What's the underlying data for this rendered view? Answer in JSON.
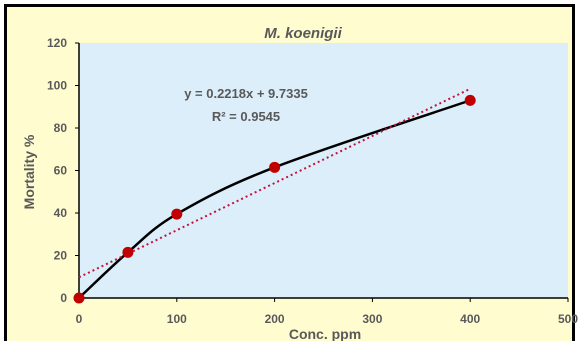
{
  "chart_data": {
    "type": "scatter",
    "title": "M. koenigii",
    "xlabel": "Conc. ppm",
    "ylabel": "Mortality %",
    "xlim": [
      0,
      500
    ],
    "ylim": [
      0,
      120
    ],
    "xticks": [
      0,
      100,
      200,
      300,
      400,
      500
    ],
    "yticks": [
      0,
      20,
      40,
      60,
      80,
      100,
      120
    ],
    "grid": false,
    "legend": "none",
    "series": [
      {
        "x": [
          0,
          50,
          100,
          200,
          400
        ],
        "y": [
          0,
          21.5,
          39.5,
          61.5,
          93
        ]
      }
    ],
    "trendline": {
      "type": "linear",
      "slope": 0.2218,
      "intercept": 9.7335,
      "r2": 0.9545,
      "style": "dotted"
    },
    "annotations": [
      "y = 0.2218x + 9.7335",
      "R² = 0.9545"
    ],
    "colors": {
      "marker": "#c00000",
      "smooth_line": "#000000",
      "trendline": "#c0143c",
      "plot_background": "#ddeefb",
      "chart_background": "#fffdd0"
    }
  }
}
